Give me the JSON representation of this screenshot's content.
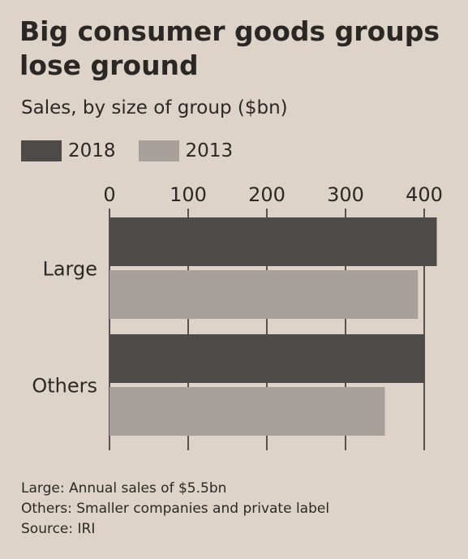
{
  "title": "Big consumer goods groups lose ground",
  "subtitle": "Sales, by size of group ($bn)",
  "colors": {
    "background": "#ddd3c8",
    "series_2018": "#4e4a47",
    "series_2013": "#a8a19b",
    "grid": "#2b2826",
    "text": "#2b2826"
  },
  "footnotes": {
    "large": "Large: Annual sales of $5.5bn",
    "others": "Others: Smaller companies and private label",
    "source": "Source: IRI"
  },
  "chart_data": {
    "type": "bar",
    "orientation": "horizontal",
    "categories": [
      "Large",
      "Others"
    ],
    "series": [
      {
        "name": "2018",
        "values": [
          416,
          401
        ]
      },
      {
        "name": "2013",
        "values": [
          392,
          350
        ]
      }
    ],
    "xlim": [
      0,
      400
    ],
    "xticks": [
      "0",
      "100",
      "200",
      "300",
      "400"
    ],
    "xaxis_position": "top",
    "grid": true,
    "legend_position": "top-left"
  }
}
